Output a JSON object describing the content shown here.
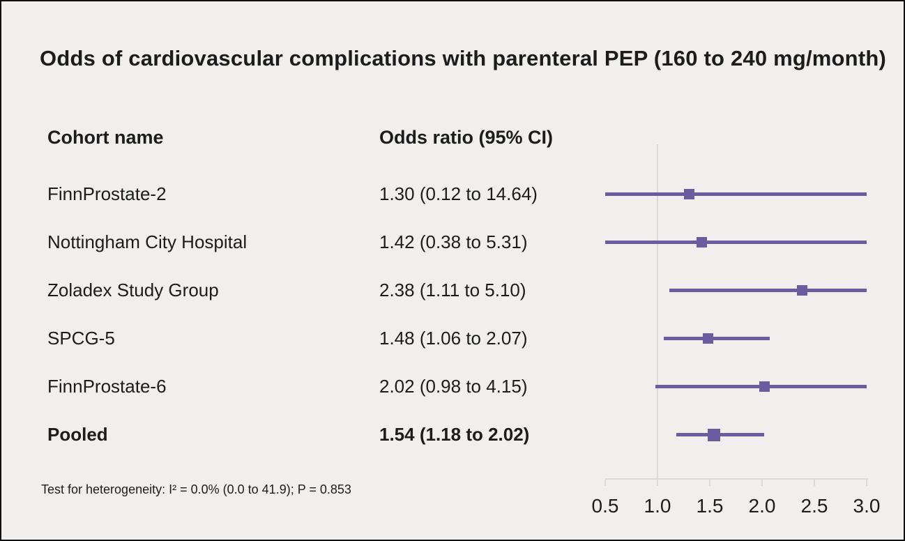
{
  "title": "Odds of cardiovascular complications with parenteral PEP (160 to 240 mg/month)",
  "columns": {
    "cohort": "Cohort name",
    "odds_ratio": "Odds ratio (95% CI)"
  },
  "footnote": "Test for heterogeneity: I² = 0.0% (0.0 to 41.9); P = 0.853",
  "colors": {
    "accent": "#6b5ca0",
    "background": "#f0efed",
    "axis": "#dcdad6",
    "text": "#1c1c1c"
  },
  "chart_data": {
    "type": "forest",
    "title": "Odds of cardiovascular complications with parenteral PEP (160 to 240 mg/month)",
    "xlim": [
      0.5,
      3.0
    ],
    "reference_line": 1.0,
    "x_ticks": [
      0.5,
      1.0,
      1.5,
      2.0,
      2.5,
      3.0
    ],
    "x_tick_labels": [
      "0.5",
      "1.0",
      "1.5",
      "2.0",
      "2.5",
      "3.0"
    ],
    "grid": false,
    "rows": [
      {
        "label": "FinnProstate-2",
        "or_text": "1.30 (0.12 to 14.64)",
        "estimate": 1.3,
        "ci_low": 0.12,
        "ci_high": 14.64,
        "pooled": false
      },
      {
        "label": "Nottingham City Hospital",
        "or_text": "1.42 (0.38 to 5.31)",
        "estimate": 1.42,
        "ci_low": 0.38,
        "ci_high": 5.31,
        "pooled": false
      },
      {
        "label": "Zoladex Study Group",
        "or_text": "2.38 (1.11 to 5.10)",
        "estimate": 2.38,
        "ci_low": 1.11,
        "ci_high": 5.1,
        "pooled": false
      },
      {
        "label": "SPCG-5",
        "or_text": "1.48 (1.06 to 2.07)",
        "estimate": 1.48,
        "ci_low": 1.06,
        "ci_high": 2.07,
        "pooled": false
      },
      {
        "label": "FinnProstate-6",
        "or_text": "2.02 (0.98 to 4.15)",
        "estimate": 2.02,
        "ci_low": 0.98,
        "ci_high": 4.15,
        "pooled": false
      },
      {
        "label": "Pooled",
        "or_text": "1.54 (1.18 to 2.02)",
        "estimate": 1.54,
        "ci_low": 1.18,
        "ci_high": 2.02,
        "pooled": true
      }
    ]
  }
}
